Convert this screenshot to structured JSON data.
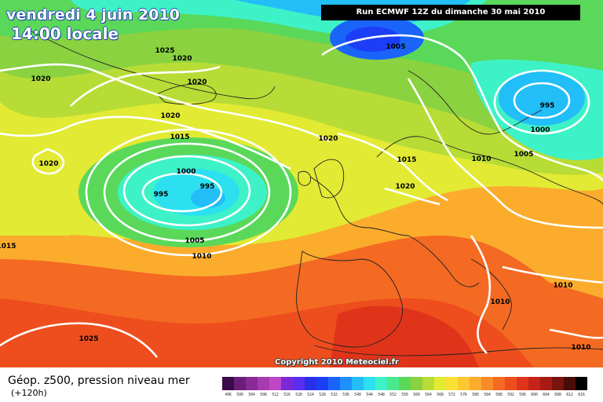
{
  "title": {
    "date": "vendredi 4 juin 2010",
    "time": "14:00 locale"
  },
  "run_info": "Run ECMWF 12Z du dimanche 30 mai 2010",
  "copyright": "Copyright 2010 Meteociel.fr",
  "legend": {
    "title": "Géop. z500, pression niveau mer",
    "subtitle": "(+120h)",
    "values": [
      "496",
      "500",
      "504",
      "508",
      "512",
      "516",
      "520",
      "524",
      "528",
      "532",
      "536",
      "540",
      "544",
      "548",
      "552",
      "556",
      "560",
      "564",
      "568",
      "572",
      "576",
      "580",
      "584",
      "588",
      "592",
      "596",
      "600",
      "604",
      "608",
      "612",
      "616"
    ],
    "colors": [
      "#3a0a4a",
      "#6a1e7a",
      "#8a2a96",
      "#a83ab0",
      "#c046c8",
      "#7a2ad6",
      "#5a2ef0",
      "#2a2ee6",
      "#1c3ef6",
      "#1a64fa",
      "#1e90fc",
      "#22bef8",
      "#2ce0f0",
      "#3ef2c8",
      "#4aea8c",
      "#5ad85a",
      "#8ad240",
      "#b8dc36",
      "#e2ea34",
      "#fae234",
      "#fcc830",
      "#fbac2c",
      "#f88c28",
      "#f46a22",
      "#ee4e1e",
      "#e0341a",
      "#c62418",
      "#a81a14",
      "#7a1410",
      "#4a0c08",
      "#000000"
    ]
  },
  "isobar_labels": [
    {
      "text": "1025"
    },
    {
      "text": "1020"
    },
    {
      "text": "1020"
    },
    {
      "text": "1020"
    },
    {
      "text": "1020"
    },
    {
      "text": "1020"
    },
    {
      "text": "1015"
    },
    {
      "text": "1020"
    },
    {
      "text": "1000"
    },
    {
      "text": "995"
    },
    {
      "text": "995"
    },
    {
      "text": "1005"
    },
    {
      "text": "1010"
    },
    {
      "text": "1015"
    },
    {
      "text": "1015"
    },
    {
      "text": "1020"
    },
    {
      "text": "1005"
    },
    {
      "text": "995"
    },
    {
      "text": "1000"
    },
    {
      "text": "1005"
    },
    {
      "text": "1010"
    },
    {
      "text": "1010"
    },
    {
      "text": "1010"
    },
    {
      "text": "1010"
    },
    {
      "text": "1025"
    }
  ]
}
